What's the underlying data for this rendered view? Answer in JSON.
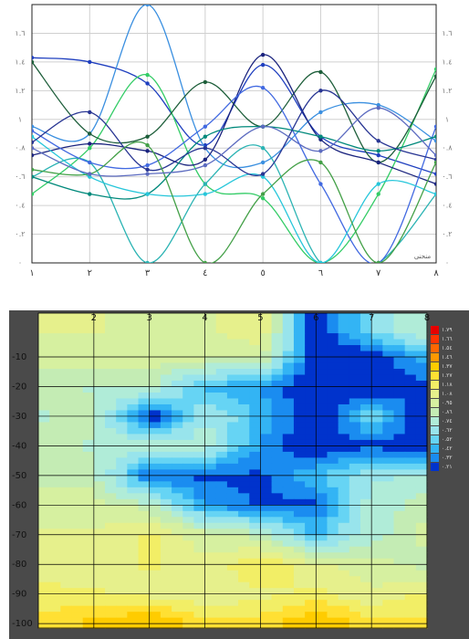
{
  "chart_data": [
    {
      "type": "line",
      "categories": [
        "١",
        "٢",
        "٣",
        "٤",
        "٥",
        "٦",
        "٧",
        "٨"
      ],
      "ylim": [
        0,
        1.8
      ],
      "yticks": [
        {
          "value": 0,
          "label": "٠"
        },
        {
          "value": 0.2,
          "label": "٠.٢"
        },
        {
          "value": 0.4,
          "label": "٠.٤"
        },
        {
          "value": 0.6,
          "label": "٠.٦"
        },
        {
          "value": 0.8,
          "label": "٠.٨"
        },
        {
          "value": 1,
          "label": "١"
        },
        {
          "value": 1.2,
          "label": "١.٢"
        },
        {
          "value": 1.4,
          "label": "١.٤"
        },
        {
          "value": 1.6,
          "label": "١.٦"
        }
      ],
      "grid": true,
      "annotation": "منحنى",
      "series": [
        {
          "color": "#1f3fbf",
          "values": [
            1.43,
            1.4,
            1.25,
            0.82,
            1.38,
            0.88,
            0.75,
            0.62
          ]
        },
        {
          "color": "#3a8fe0",
          "values": [
            0.95,
            0.9,
            1.8,
            0.8,
            0.7,
            1.05,
            1.1,
            0.85
          ]
        },
        {
          "color": "#33cc66",
          "values": [
            0.48,
            0.8,
            1.31,
            0.55,
            0.45,
            0.0,
            0.48,
            1.35
          ]
        },
        {
          "color": "#1d5e3a",
          "values": [
            1.4,
            0.9,
            0.88,
            1.26,
            0.95,
            1.33,
            0.7,
            1.3
          ]
        },
        {
          "color": "#2ab3b3",
          "values": [
            0.6,
            0.7,
            0.0,
            0.55,
            0.8,
            0.0,
            0.0,
            0.48
          ]
        },
        {
          "color": "#1a237e",
          "values": [
            0.75,
            0.83,
            0.78,
            0.72,
            1.45,
            0.86,
            0.7,
            0.55
          ]
        },
        {
          "color": "#4169e1",
          "values": [
            0.92,
            0.7,
            0.68,
            0.95,
            1.22,
            0.55,
            0.0,
            0.95
          ]
        },
        {
          "color": "#00897b",
          "values": [
            0.6,
            0.48,
            0.48,
            0.88,
            0.95,
            0.88,
            0.78,
            0.88
          ]
        },
        {
          "color": "#26c6da",
          "values": [
            0.88,
            0.6,
            0.48,
            0.48,
            0.6,
            0.0,
            0.55,
            0.48
          ]
        },
        {
          "color": "#283593",
          "values": [
            0.84,
            1.05,
            0.65,
            0.8,
            0.62,
            1.2,
            0.85,
            0.72
          ]
        },
        {
          "color": "#43a047",
          "values": [
            0.65,
            0.62,
            0.82,
            0.0,
            0.48,
            0.7,
            0.0,
            0.7
          ]
        },
        {
          "color": "#5c6bc0",
          "values": [
            0.8,
            0.62,
            0.62,
            0.68,
            0.95,
            0.78,
            1.08,
            0.75
          ]
        }
      ]
    },
    {
      "type": "contour",
      "xlim": [
        1,
        8
      ],
      "xticks": [
        2,
        3,
        4,
        5,
        6,
        7,
        8
      ],
      "ylim": [
        -101.5,
        4.8
      ],
      "yticks": [
        -10,
        -20,
        -30,
        -40,
        -50,
        -60,
        -70,
        -80,
        -90,
        -100
      ],
      "grid": true,
      "x": [
        1,
        2,
        3,
        4,
        5,
        6,
        7,
        8
      ],
      "y": [
        0,
        -10,
        -20,
        -30,
        -40,
        -50,
        -60,
        -70,
        -80,
        -90,
        -100
      ],
      "z": [
        [
          1.1,
          1.1,
          1.05,
          1.05,
          1.2,
          0.2,
          0.7,
          0.9
        ],
        [
          1.0,
          1.0,
          1.0,
          1.0,
          1.0,
          0.2,
          0.2,
          0.5
        ],
        [
          0.9,
          0.85,
          0.9,
          0.5,
          0.4,
          0.2,
          0.2,
          0.3
        ],
        [
          0.85,
          0.9,
          0.2,
          0.75,
          0.5,
          0.2,
          0.6,
          0.2
        ],
        [
          0.9,
          0.85,
          0.8,
          0.8,
          0.4,
          0.2,
          0.3,
          0.2
        ],
        [
          0.9,
          0.9,
          0.3,
          0.3,
          0.3,
          0.5,
          0.7,
          0.8
        ],
        [
          1.0,
          1.0,
          0.9,
          0.4,
          0.3,
          0.3,
          0.8,
          0.9
        ],
        [
          1.1,
          1.1,
          1.2,
          1.0,
          0.9,
          0.5,
          0.8,
          1.0
        ],
        [
          1.15,
          1.1,
          1.2,
          1.1,
          1.3,
          1.1,
          1.0,
          0.9
        ],
        [
          1.2,
          1.2,
          1.15,
          1.1,
          1.15,
          1.2,
          1.1,
          1.2
        ],
        [
          1.3,
          1.4,
          1.5,
          1.3,
          1.3,
          1.5,
          1.3,
          1.3
        ]
      ],
      "levels": [
        {
          "value": 1.79,
          "label": "١.٧٩"
        },
        {
          "value": 1.66,
          "label": "١.٦٦"
        },
        {
          "value": 1.54,
          "label": "١.٥٤"
        },
        {
          "value": 1.46,
          "label": "١.٤٦"
        },
        {
          "value": 1.37,
          "label": "١.٣٧"
        },
        {
          "value": 1.27,
          "label": "١.٢٧"
        },
        {
          "value": 1.18,
          "label": "١.١٨"
        },
        {
          "value": 1.08,
          "label": "١.٠٨"
        },
        {
          "value": 0.95,
          "label": "٠.٩٥"
        },
        {
          "value": 0.86,
          "label": "٠.٨٦"
        },
        {
          "value": 0.74,
          "label": "٠.٧٤"
        },
        {
          "value": 0.62,
          "label": "٠.٦٢"
        },
        {
          "value": 0.52,
          "label": "٠.٥٢"
        },
        {
          "value": 0.42,
          "label": "٠.٤٢"
        },
        {
          "value": 0.32,
          "label": "٠.٣٢"
        },
        {
          "value": 0.21,
          "label": "٠.٢١"
        }
      ],
      "colors": [
        "#e60000",
        "#ff3300",
        "#ff6600",
        "#ff9900",
        "#ffcc00",
        "#ffe033",
        "#f2ee66",
        "#e6f08c",
        "#d6f0a0",
        "#c4ecb4",
        "#b0ecd8",
        "#98e4ec",
        "#66d4f4",
        "#33b4f4",
        "#1a8cf0",
        "#0033cc"
      ]
    }
  ]
}
